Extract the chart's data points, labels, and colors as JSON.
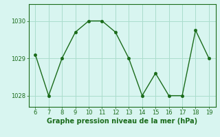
{
  "x": [
    6,
    7,
    8,
    9,
    10,
    11,
    12,
    13,
    14,
    15,
    16,
    17,
    18,
    19
  ],
  "y": [
    1029.1,
    1028.0,
    1029.0,
    1029.7,
    1030.0,
    1030.0,
    1029.7,
    1029.0,
    1028.0,
    1028.6,
    1028.0,
    1028.0,
    1029.75,
    1029.0
  ],
  "line_color": "#1a6b1a",
  "marker": "o",
  "background_color": "#d8f5f0",
  "grid_color": "#aaddcc",
  "xlabel": "Graphe pression niveau de la mer (hPa)",
  "xlim": [
    5.5,
    19.5
  ],
  "ylim": [
    1027.7,
    1030.45
  ],
  "yticks": [
    1028,
    1029,
    1030
  ],
  "xticks": [
    6,
    7,
    8,
    9,
    10,
    11,
    12,
    13,
    14,
    15,
    16,
    17,
    18,
    19
  ],
  "tick_color": "#1a6b1a",
  "xlabel_fontsize": 7.0,
  "xlabel_fontweight": "bold",
  "tick_fontsize": 6.0,
  "linewidth": 1.0,
  "markersize": 3.0
}
